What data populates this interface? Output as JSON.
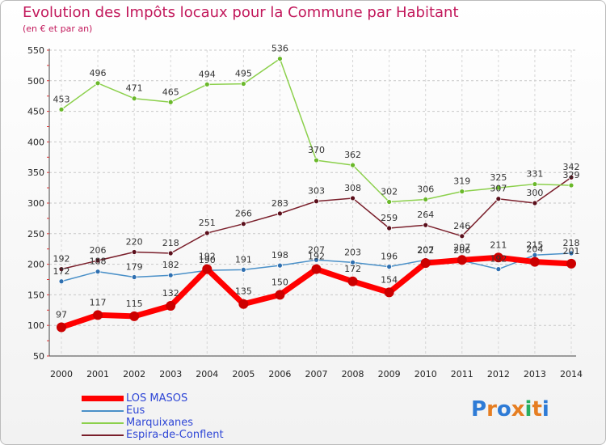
{
  "header": {
    "title": "Evolution des Impôts locaux pour la Commune par Habitant",
    "subtitle": "(en € et par an)"
  },
  "logo": {
    "text": "Proxiti",
    "colors": [
      "#2e7bd6",
      "#e67e22",
      "#2e7bd6",
      "#e67e22",
      "#27ae60",
      "#e67e22",
      "#2e7bd6"
    ]
  },
  "chart_data": {
    "type": "line",
    "title": "Evolution des Impôts locaux pour la Commune par Habitant",
    "subtitle": "(en € et par an)",
    "xlabel": "",
    "ylabel": "",
    "x": [
      2000,
      2001,
      2002,
      2003,
      2004,
      2005,
      2006,
      2007,
      2008,
      2009,
      2010,
      2011,
      2012,
      2013,
      2014
    ],
    "ylim": [
      50,
      550
    ],
    "yticks": [
      50,
      100,
      150,
      200,
      250,
      300,
      350,
      400,
      450,
      500,
      550
    ],
    "grid": true,
    "legend": "bottom-left",
    "series": [
      {
        "name": "LOS MASOS",
        "color": "#ff0000",
        "values": [
          97,
          117,
          115,
          132,
          192,
          135,
          150,
          192,
          172,
          154,
          202,
          207,
          211,
          204,
          201
        ]
      },
      {
        "name": "Eus",
        "color": "#4a90c8",
        "values": [
          172,
          188,
          179,
          182,
          190,
          191,
          198,
          207,
          203,
          196,
          207,
          206,
          192,
          215,
          218
        ]
      },
      {
        "name": "Marquixanes",
        "color": "#8cd04c",
        "values": [
          453,
          496,
          471,
          465,
          494,
          495,
          536,
          370,
          362,
          302,
          306,
          319,
          325,
          331,
          329
        ]
      },
      {
        "name": "Espira-de-Conflent",
        "color": "#7a1f2b",
        "values": [
          192,
          206,
          220,
          218,
          251,
          266,
          283,
          303,
          308,
          259,
          264,
          246,
          307,
          300,
          342
        ]
      }
    ]
  }
}
